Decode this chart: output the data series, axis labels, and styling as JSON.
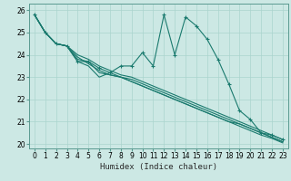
{
  "title": "",
  "xlabel": "Humidex (Indice chaleur)",
  "bg_color": "#cce8e4",
  "line_color": "#1a7a6e",
  "grid_color": "#aad4ce",
  "xlim": [
    -0.5,
    23.5
  ],
  "ylim": [
    19.8,
    26.3
  ],
  "xticks": [
    0,
    1,
    2,
    3,
    4,
    5,
    6,
    7,
    8,
    9,
    10,
    11,
    12,
    13,
    14,
    15,
    16,
    17,
    18,
    19,
    20,
    21,
    22,
    23
  ],
  "yticks": [
    20,
    21,
    22,
    23,
    24,
    25,
    26
  ],
  "series": [
    [
      25.8,
      25.0,
      24.5,
      24.4,
      23.7,
      23.7,
      23.4,
      23.2,
      23.5,
      23.5,
      24.1,
      23.5,
      25.8,
      24.0,
      25.7,
      25.3,
      24.7,
      23.8,
      22.7,
      21.5,
      21.1,
      20.5,
      20.4,
      20.2
    ],
    [
      25.8,
      25.0,
      24.5,
      24.4,
      24.0,
      23.8,
      23.5,
      23.3,
      23.1,
      23.0,
      22.8,
      22.6,
      22.4,
      22.2,
      22.0,
      21.8,
      21.6,
      21.4,
      21.2,
      21.0,
      20.8,
      20.6,
      20.4,
      20.2
    ],
    [
      25.8,
      25.0,
      24.5,
      24.4,
      23.9,
      23.6,
      23.3,
      23.1,
      23.0,
      22.9,
      22.7,
      22.5,
      22.3,
      22.1,
      21.9,
      21.7,
      21.5,
      21.3,
      21.1,
      20.9,
      20.7,
      20.5,
      20.3,
      20.1
    ],
    [
      25.8,
      25.0,
      24.5,
      24.4,
      23.7,
      23.5,
      23.0,
      23.2,
      23.0,
      22.8,
      22.6,
      22.4,
      22.2,
      22.0,
      21.8,
      21.6,
      21.4,
      21.2,
      21.0,
      20.8,
      20.6,
      20.4,
      20.25,
      20.05
    ],
    [
      25.8,
      25.0,
      24.5,
      24.4,
      23.8,
      23.7,
      23.2,
      23.1,
      23.0,
      22.8,
      22.6,
      22.4,
      22.2,
      22.0,
      21.8,
      21.6,
      21.4,
      21.2,
      21.0,
      20.9,
      20.7,
      20.5,
      20.3,
      20.1
    ]
  ],
  "xlabel_fontsize": 6.5,
  "tick_fontsize": 5.5,
  "linewidth": 0.8,
  "marker": "+",
  "markersize": 3.0
}
